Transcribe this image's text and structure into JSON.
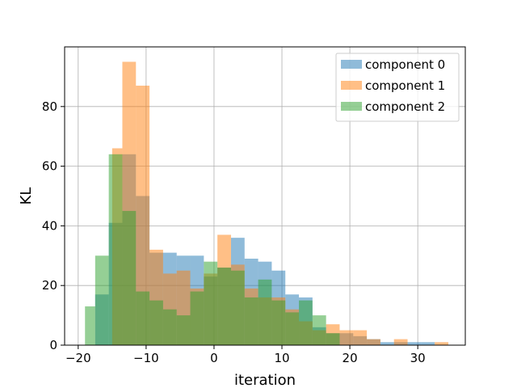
{
  "chart_data": {
    "type": "histogram",
    "xlabel": "iteration",
    "ylabel": "KL",
    "xlim": [
      -22,
      37
    ],
    "ylim": [
      0,
      100
    ],
    "xticks": [
      -20,
      -10,
      0,
      10,
      20,
      30
    ],
    "yticks": [
      0,
      20,
      40,
      60,
      80
    ],
    "grid": true,
    "legend_position": "top-right",
    "series": [
      {
        "name": "component 0",
        "color": "#1f77b4",
        "alpha": 0.5,
        "bins": [
          {
            "x0": -17.5,
            "x1": -15.5,
            "value": 17
          },
          {
            "x0": -15.5,
            "x1": -13.5,
            "value": 41
          },
          {
            "x0": -13.5,
            "x1": -11.5,
            "value": 64
          },
          {
            "x0": -11.5,
            "x1": -9.5,
            "value": 50
          },
          {
            "x0": -9.5,
            "x1": -7.5,
            "value": 31
          },
          {
            "x0": -7.5,
            "x1": -5.5,
            "value": 31
          },
          {
            "x0": -5.5,
            "x1": -3.5,
            "value": 30
          },
          {
            "x0": -3.5,
            "x1": -1.5,
            "value": 30
          },
          {
            "x0": -1.5,
            "x1": 0.5,
            "value": 23
          },
          {
            "x0": 0.5,
            "x1": 2.5,
            "value": 26
          },
          {
            "x0": 2.5,
            "x1": 4.5,
            "value": 36
          },
          {
            "x0": 4.5,
            "x1": 6.5,
            "value": 29
          },
          {
            "x0": 6.5,
            "x1": 8.5,
            "value": 28
          },
          {
            "x0": 8.5,
            "x1": 10.5,
            "value": 25
          },
          {
            "x0": 10.5,
            "x1": 12.5,
            "value": 17
          },
          {
            "x0": 12.5,
            "x1": 14.5,
            "value": 16
          },
          {
            "x0": 14.5,
            "x1": 16.5,
            "value": 6
          },
          {
            "x0": 16.5,
            "x1": 18.5,
            "value": 4
          },
          {
            "x0": 18.5,
            "x1": 20.5,
            "value": 4
          },
          {
            "x0": 20.5,
            "x1": 22.5,
            "value": 3
          },
          {
            "x0": 22.5,
            "x1": 24.5,
            "value": 2
          },
          {
            "x0": 24.5,
            "x1": 26.5,
            "value": 1
          },
          {
            "x0": 26.5,
            "x1": 28.5,
            "value": 1
          },
          {
            "x0": 28.5,
            "x1": 30.5,
            "value": 1
          },
          {
            "x0": 30.5,
            "x1": 32.5,
            "value": 1
          }
        ]
      },
      {
        "name": "component 1",
        "color": "#ff7f0e",
        "alpha": 0.5,
        "bins": [
          {
            "x0": -15.0,
            "x1": -13.5,
            "value": 66
          },
          {
            "x0": -13.5,
            "x1": -11.5,
            "value": 95
          },
          {
            "x0": -11.5,
            "x1": -9.5,
            "value": 87
          },
          {
            "x0": -9.5,
            "x1": -7.5,
            "value": 32
          },
          {
            "x0": -7.5,
            "x1": -5.5,
            "value": 24
          },
          {
            "x0": -5.5,
            "x1": -3.5,
            "value": 25
          },
          {
            "x0": -3.5,
            "x1": -1.5,
            "value": 19
          },
          {
            "x0": -1.5,
            "x1": 0.5,
            "value": 24
          },
          {
            "x0": 0.5,
            "x1": 2.5,
            "value": 37
          },
          {
            "x0": 2.5,
            "x1": 4.5,
            "value": 27
          },
          {
            "x0": 4.5,
            "x1": 6.5,
            "value": 19
          },
          {
            "x0": 6.5,
            "x1": 8.5,
            "value": 16
          },
          {
            "x0": 8.5,
            "x1": 10.5,
            "value": 16
          },
          {
            "x0": 10.5,
            "x1": 12.5,
            "value": 12
          },
          {
            "x0": 12.5,
            "x1": 14.5,
            "value": 8
          },
          {
            "x0": 14.5,
            "x1": 16.5,
            "value": 5
          },
          {
            "x0": 16.5,
            "x1": 18.5,
            "value": 7
          },
          {
            "x0": 18.5,
            "x1": 20.5,
            "value": 5
          },
          {
            "x0": 20.5,
            "x1": 22.5,
            "value": 5
          },
          {
            "x0": 22.5,
            "x1": 24.5,
            "value": 2
          },
          {
            "x0": 26.5,
            "x1": 28.5,
            "value": 2
          },
          {
            "x0": 32.5,
            "x1": 34.5,
            "value": 1
          }
        ]
      },
      {
        "name": "component 2",
        "color": "#2ca02c",
        "alpha": 0.5,
        "bins": [
          {
            "x0": -19.0,
            "x1": -17.5,
            "value": 13
          },
          {
            "x0": -17.5,
            "x1": -15.5,
            "value": 30
          },
          {
            "x0": -15.5,
            "x1": -13.5,
            "value": 64
          },
          {
            "x0": -13.5,
            "x1": -11.5,
            "value": 45
          },
          {
            "x0": -11.5,
            "x1": -9.5,
            "value": 18
          },
          {
            "x0": -9.5,
            "x1": -7.5,
            "value": 15
          },
          {
            "x0": -7.5,
            "x1": -5.5,
            "value": 12
          },
          {
            "x0": -5.5,
            "x1": -3.5,
            "value": 10
          },
          {
            "x0": -3.5,
            "x1": -1.5,
            "value": 18
          },
          {
            "x0": -1.5,
            "x1": 0.5,
            "value": 28
          },
          {
            "x0": 0.5,
            "x1": 2.5,
            "value": 26
          },
          {
            "x0": 2.5,
            "x1": 4.5,
            "value": 25
          },
          {
            "x0": 4.5,
            "x1": 6.5,
            "value": 16
          },
          {
            "x0": 6.5,
            "x1": 8.5,
            "value": 22
          },
          {
            "x0": 8.5,
            "x1": 10.5,
            "value": 15
          },
          {
            "x0": 10.5,
            "x1": 12.5,
            "value": 11
          },
          {
            "x0": 12.5,
            "x1": 14.5,
            "value": 15
          },
          {
            "x0": 14.5,
            "x1": 16.5,
            "value": 10
          },
          {
            "x0": 16.5,
            "x1": 18.5,
            "value": 4
          }
        ]
      }
    ]
  }
}
